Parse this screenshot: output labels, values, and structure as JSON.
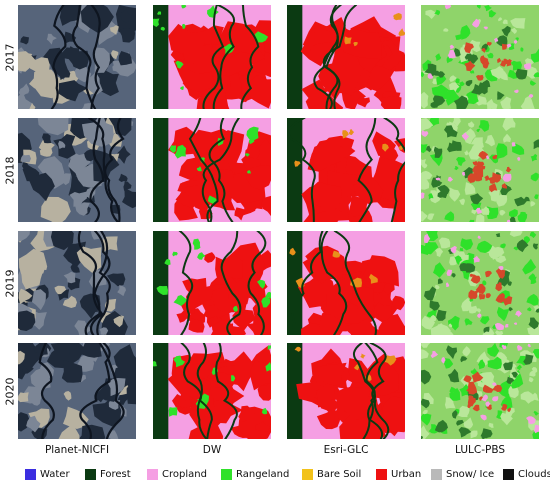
{
  "years": [
    "2017",
    "2018",
    "2019",
    "2020"
  ],
  "columns": [
    "Planet-NICFI",
    "DW",
    "Esri-GLC",
    "LULC-PBS"
  ],
  "legend": [
    {
      "label": "Water",
      "color": "#3b2ee0"
    },
    {
      "label": "Forest",
      "color": "#0b3a12"
    },
    {
      "label": "Cropland",
      "color": "#f59fe3"
    },
    {
      "label": "Rangeland",
      "color": "#2fe12a"
    },
    {
      "label": "Bare Soil",
      "color": "#f2c21b"
    },
    {
      "label": "Urban",
      "color": "#ee1111"
    },
    {
      "label": "Snow/ Ice",
      "color": "#b9b9b9"
    },
    {
      "label": "Clouds",
      "color": "#111111"
    }
  ],
  "palette": {
    "satellite_dark": "#1f2a3a",
    "satellite_mid": "#56647a",
    "satellite_light": "#b7b1a0",
    "pbs_base": "#8fd46a",
    "pbs_light": "#b9e79a",
    "pbs_dark": "#2e7a2c",
    "pbs_urban": "#d6482a"
  }
}
